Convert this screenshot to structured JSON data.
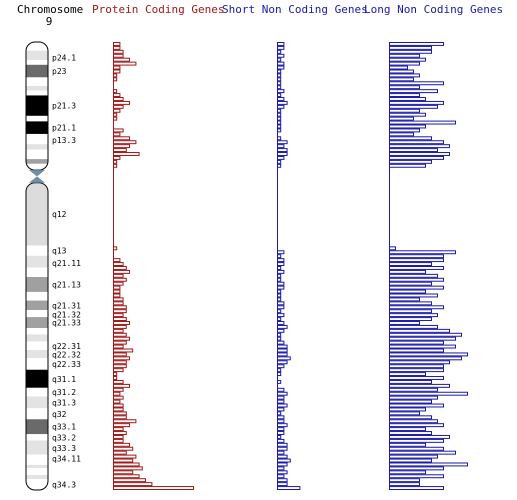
{
  "header": {
    "chromosome_label": "Chromosome",
    "chromosome_number": "9",
    "protein_coding_label": "Protein Coding Genes",
    "short_non_coding_label": "Short Non Coding Genes",
    "long_non_coding_label": "Long Non Coding Genes"
  },
  "colors": {
    "protein": "#a01818",
    "short": "#1a1aa8",
    "long": "#1a1aa8",
    "band_gneg": "#ffffff",
    "band_gpos25": "#e3e3e3",
    "band_gpos50": "#a0a0a0",
    "band_gpos75": "#6a6a6a",
    "band_gpos100": "#000000",
    "band_gvar": "#dcdcdc",
    "centromere": "#6f8fa8",
    "outline": "#000000"
  },
  "bands": [
    {
      "name": "p24.3",
      "start": 0.0,
      "end": 2.2,
      "stain": "gneg"
    },
    {
      "name": "p24.1",
      "start": 2.2,
      "end": 4.6,
      "stain": "gpos25"
    },
    {
      "name": "p24",
      "start": 4.6,
      "end": 5.8,
      "stain": "gneg"
    },
    {
      "name": "p23",
      "start": 5.8,
      "end": 9.0,
      "stain": "gpos75"
    },
    {
      "name": "p22.3",
      "start": 9.0,
      "end": 11.2,
      "stain": "gneg"
    },
    {
      "name": "p22.1",
      "start": 11.2,
      "end": 12.4,
      "stain": "gpos25"
    },
    {
      "name": "p22",
      "start": 12.4,
      "end": 13.6,
      "stain": "gneg"
    },
    {
      "name": "p21.3",
      "start": 13.6,
      "end": 18.8,
      "stain": "gpos100"
    },
    {
      "name": "p21.2",
      "start": 18.8,
      "end": 20.2,
      "stain": "gneg"
    },
    {
      "name": "p21.1",
      "start": 20.2,
      "end": 23.4,
      "stain": "gpos100"
    },
    {
      "name": "p13.3",
      "start": 23.4,
      "end": 26.0,
      "stain": "gneg"
    },
    {
      "name": "p13.2",
      "start": 26.0,
      "end": 27.4,
      "stain": "gpos25"
    },
    {
      "name": "p13.1",
      "start": 27.4,
      "end": 29.8,
      "stain": "gneg"
    },
    {
      "name": "p12",
      "start": 29.8,
      "end": 31.0,
      "stain": "gpos50"
    },
    {
      "name": "p11.2",
      "start": 31.0,
      "end": 32.6,
      "stain": "gneg"
    },
    {
      "name": "p11.1",
      "start": 32.6,
      "end": 34.6,
      "stain": "acen"
    },
    {
      "name": "q11",
      "start": 34.6,
      "end": 35.8,
      "stain": "acen"
    },
    {
      "name": "q12",
      "start": 35.8,
      "end": 51.8,
      "stain": "gvar"
    },
    {
      "name": "q13",
      "start": 51.8,
      "end": 54.4,
      "stain": "gneg"
    },
    {
      "name": "q21.11",
      "start": 54.4,
      "end": 57.4,
      "stain": "gpos25"
    },
    {
      "name": "q21.12",
      "start": 57.4,
      "end": 59.8,
      "stain": "gneg"
    },
    {
      "name": "q21.13",
      "start": 59.8,
      "end": 63.6,
      "stain": "gpos50"
    },
    {
      "name": "q21.2",
      "start": 63.6,
      "end": 65.8,
      "stain": "gneg"
    },
    {
      "name": "q21.31",
      "start": 65.8,
      "end": 68.2,
      "stain": "gpos50"
    },
    {
      "name": "q21.32",
      "start": 68.2,
      "end": 70.0,
      "stain": "gneg"
    },
    {
      "name": "q21.33",
      "start": 70.0,
      "end": 72.8,
      "stain": "gpos50"
    },
    {
      "name": "q22.1",
      "start": 72.8,
      "end": 74.4,
      "stain": "gneg"
    },
    {
      "name": "q22.2",
      "start": 74.4,
      "end": 76.2,
      "stain": "gpos25"
    },
    {
      "name": "q22.31",
      "start": 76.2,
      "end": 78.4,
      "stain": "gneg"
    },
    {
      "name": "q22.32",
      "start": 78.4,
      "end": 80.4,
      "stain": "gpos25"
    },
    {
      "name": "q22.33",
      "start": 80.4,
      "end": 83.4,
      "stain": "gneg"
    },
    {
      "name": "q31.1",
      "start": 83.4,
      "end": 88.0,
      "stain": "gpos100"
    },
    {
      "name": "q31.2",
      "start": 88.0,
      "end": 90.2,
      "stain": "gneg"
    },
    {
      "name": "q31.3",
      "start": 90.2,
      "end": 93.2,
      "stain": "gpos25"
    },
    {
      "name": "q32",
      "start": 93.2,
      "end": 96.0,
      "stain": "gneg"
    },
    {
      "name": "q33.1",
      "start": 96.0,
      "end": 99.8,
      "stain": "gpos75"
    },
    {
      "name": "q33.2",
      "start": 99.8,
      "end": 101.4,
      "stain": "gneg"
    },
    {
      "name": "q33.3",
      "start": 101.4,
      "end": 105.0,
      "stain": "gpos25"
    },
    {
      "name": "q34.11",
      "start": 105.0,
      "end": 107.6,
      "stain": "gneg"
    },
    {
      "name": "q34.12",
      "start": 107.6,
      "end": 108.4,
      "stain": "gpos25"
    },
    {
      "name": "q34.13",
      "start": 108.4,
      "end": 110.2,
      "stain": "gneg"
    },
    {
      "name": "q34.2",
      "start": 110.2,
      "end": 111.2,
      "stain": "gpos25"
    },
    {
      "name": "q34.3",
      "start": 111.2,
      "end": 114.0,
      "stain": "gneg"
    }
  ],
  "band_labels": [
    {
      "text": "p24.1",
      "pos": 4.0
    },
    {
      "text": "p23",
      "pos": 7.4
    },
    {
      "text": "p21.3",
      "pos": 16.2
    },
    {
      "text": "p21.1",
      "pos": 21.8
    },
    {
      "text": "p13.3",
      "pos": 24.9
    },
    {
      "text": "q12",
      "pos": 43.8
    },
    {
      "text": "q13",
      "pos": 53.1
    },
    {
      "text": "q21.11",
      "pos": 56.3
    },
    {
      "text": "q21.13",
      "pos": 61.7
    },
    {
      "text": "q21.31",
      "pos": 67.1
    },
    {
      "text": "q21.32",
      "pos": 69.3
    },
    {
      "text": "q21.33",
      "pos": 71.4
    },
    {
      "text": "q22.31",
      "pos": 77.3
    },
    {
      "text": "q22.32",
      "pos": 79.5
    },
    {
      "text": "q22.33",
      "pos": 81.9
    },
    {
      "text": "q31.1",
      "pos": 85.7
    },
    {
      "text": "q31.2",
      "pos": 89.1
    },
    {
      "text": "q31.3",
      "pos": 91.7
    },
    {
      "text": "q32",
      "pos": 94.6
    },
    {
      "text": "q33.1",
      "pos": 97.9
    },
    {
      "text": "q33.2",
      "pos": 100.6
    },
    {
      "text": "q33.3",
      "pos": 103.3
    },
    {
      "text": "q34.11",
      "pos": 106.0
    },
    {
      "text": "q34.3",
      "pos": 112.6
    }
  ],
  "chart_data": {
    "type": "bar",
    "orientation": "horizontal",
    "position_range": [
      0,
      114
    ],
    "bin_size": 1,
    "series": [
      {
        "key": "protein",
        "values": [
          2,
          2,
          3,
          3,
          5,
          7,
          2,
          2,
          1,
          1,
          0,
          0,
          1,
          2,
          3,
          5,
          3,
          2,
          1,
          1,
          0,
          0,
          3,
          2,
          5,
          7,
          5,
          4,
          8,
          2,
          1,
          1,
          0,
          0,
          0,
          0,
          0,
          0,
          0,
          0,
          0,
          0,
          0,
          0,
          0,
          0,
          0,
          0,
          0,
          0,
          0,
          0,
          1,
          0,
          0,
          2,
          3,
          4,
          5,
          3,
          4,
          3,
          2,
          2,
          2,
          3,
          3,
          4,
          4,
          3,
          4,
          5,
          4,
          3,
          4,
          5,
          4,
          3,
          6,
          4,
          5,
          4,
          4,
          3,
          1,
          1,
          3,
          5,
          3,
          2,
          3,
          2,
          3,
          3,
          4,
          4,
          7,
          5,
          3,
          4,
          3,
          3,
          5,
          6,
          4,
          7,
          6,
          8,
          9,
          6,
          8,
          10,
          12,
          25
        ]
      },
      {
        "key": "short",
        "values": [
          2,
          2,
          1,
          2,
          1,
          2,
          2,
          1,
          1,
          1,
          1,
          1,
          2,
          1,
          2,
          3,
          2,
          1,
          1,
          1,
          1,
          1,
          1,
          0,
          1,
          3,
          2,
          3,
          3,
          2,
          1,
          1,
          0,
          0,
          0,
          0,
          0,
          0,
          0,
          0,
          0,
          0,
          0,
          0,
          0,
          0,
          0,
          0,
          0,
          0,
          0,
          0,
          0,
          2,
          1,
          2,
          2,
          1,
          2,
          1,
          1,
          2,
          2,
          1,
          1,
          1,
          2,
          2,
          1,
          2,
          1,
          2,
          3,
          2,
          1,
          1,
          2,
          3,
          3,
          3,
          4,
          3,
          2,
          1,
          1,
          0,
          1,
          0,
          2,
          3,
          2,
          2,
          3,
          2,
          1,
          2,
          2,
          3,
          2,
          2,
          1,
          2,
          3,
          3,
          2,
          3,
          4,
          3,
          2,
          3,
          2,
          3,
          3,
          7
        ]
      },
      {
        "key": "long",
        "values": [
          9,
          7,
          7,
          5,
          6,
          5,
          3,
          4,
          5,
          4,
          9,
          5,
          8,
          5,
          6,
          9,
          8,
          5,
          6,
          4,
          11,
          6,
          5,
          4,
          7,
          9,
          10,
          8,
          10,
          9,
          7,
          6,
          0,
          0,
          0,
          0,
          0,
          0,
          0,
          0,
          0,
          0,
          0,
          0,
          0,
          0,
          0,
          0,
          0,
          0,
          0,
          0,
          1,
          11,
          9,
          9,
          7,
          9,
          6,
          8,
          9,
          7,
          9,
          6,
          8,
          5,
          7,
          9,
          7,
          8,
          7,
          5,
          8,
          10,
          12,
          11,
          9,
          11,
          9,
          13,
          12,
          10,
          9,
          9,
          6,
          9,
          7,
          10,
          8,
          13,
          8,
          7,
          9,
          6,
          5,
          7,
          8,
          9,
          6,
          7,
          10,
          9,
          6,
          9,
          11,
          8,
          7,
          13,
          9,
          6,
          9,
          5,
          5,
          9
        ]
      }
    ]
  }
}
